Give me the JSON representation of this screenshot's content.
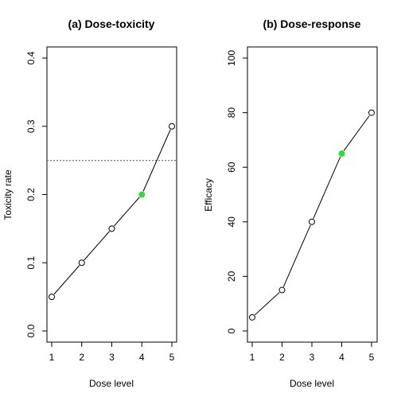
{
  "chart_data": [
    {
      "type": "line",
      "title": "(a) Dose-toxicity",
      "xlabel": "Dose level",
      "ylabel": "Toxicity rate",
      "x": [
        1,
        2,
        3,
        4,
        5
      ],
      "xticks": [
        "1",
        "2",
        "3",
        "4",
        "5"
      ],
      "xlim": [
        1,
        5
      ],
      "values": [
        0.05,
        0.1,
        0.15,
        0.2,
        0.3
      ],
      "ylim": [
        0,
        0.4
      ],
      "yticks": [
        "0.0",
        "0.1",
        "0.2",
        "0.3",
        "0.4"
      ],
      "highlight_index": 3,
      "highlight_color": "#33dd33",
      "reference_line": 0.25,
      "reference_color": "#777777"
    },
    {
      "type": "line",
      "title": "(b) Dose-response",
      "xlabel": "Dose level",
      "ylabel": "Efficacy",
      "x": [
        1,
        2,
        3,
        4,
        5
      ],
      "xticks": [
        "1",
        "2",
        "3",
        "4",
        "5"
      ],
      "xlim": [
        1,
        5
      ],
      "values": [
        5,
        15,
        40,
        65,
        80
      ],
      "ylim": [
        0,
        100
      ],
      "yticks": [
        "0",
        "20",
        "40",
        "60",
        "80",
        "100"
      ],
      "highlight_index": 3,
      "highlight_color": "#33dd33"
    }
  ]
}
